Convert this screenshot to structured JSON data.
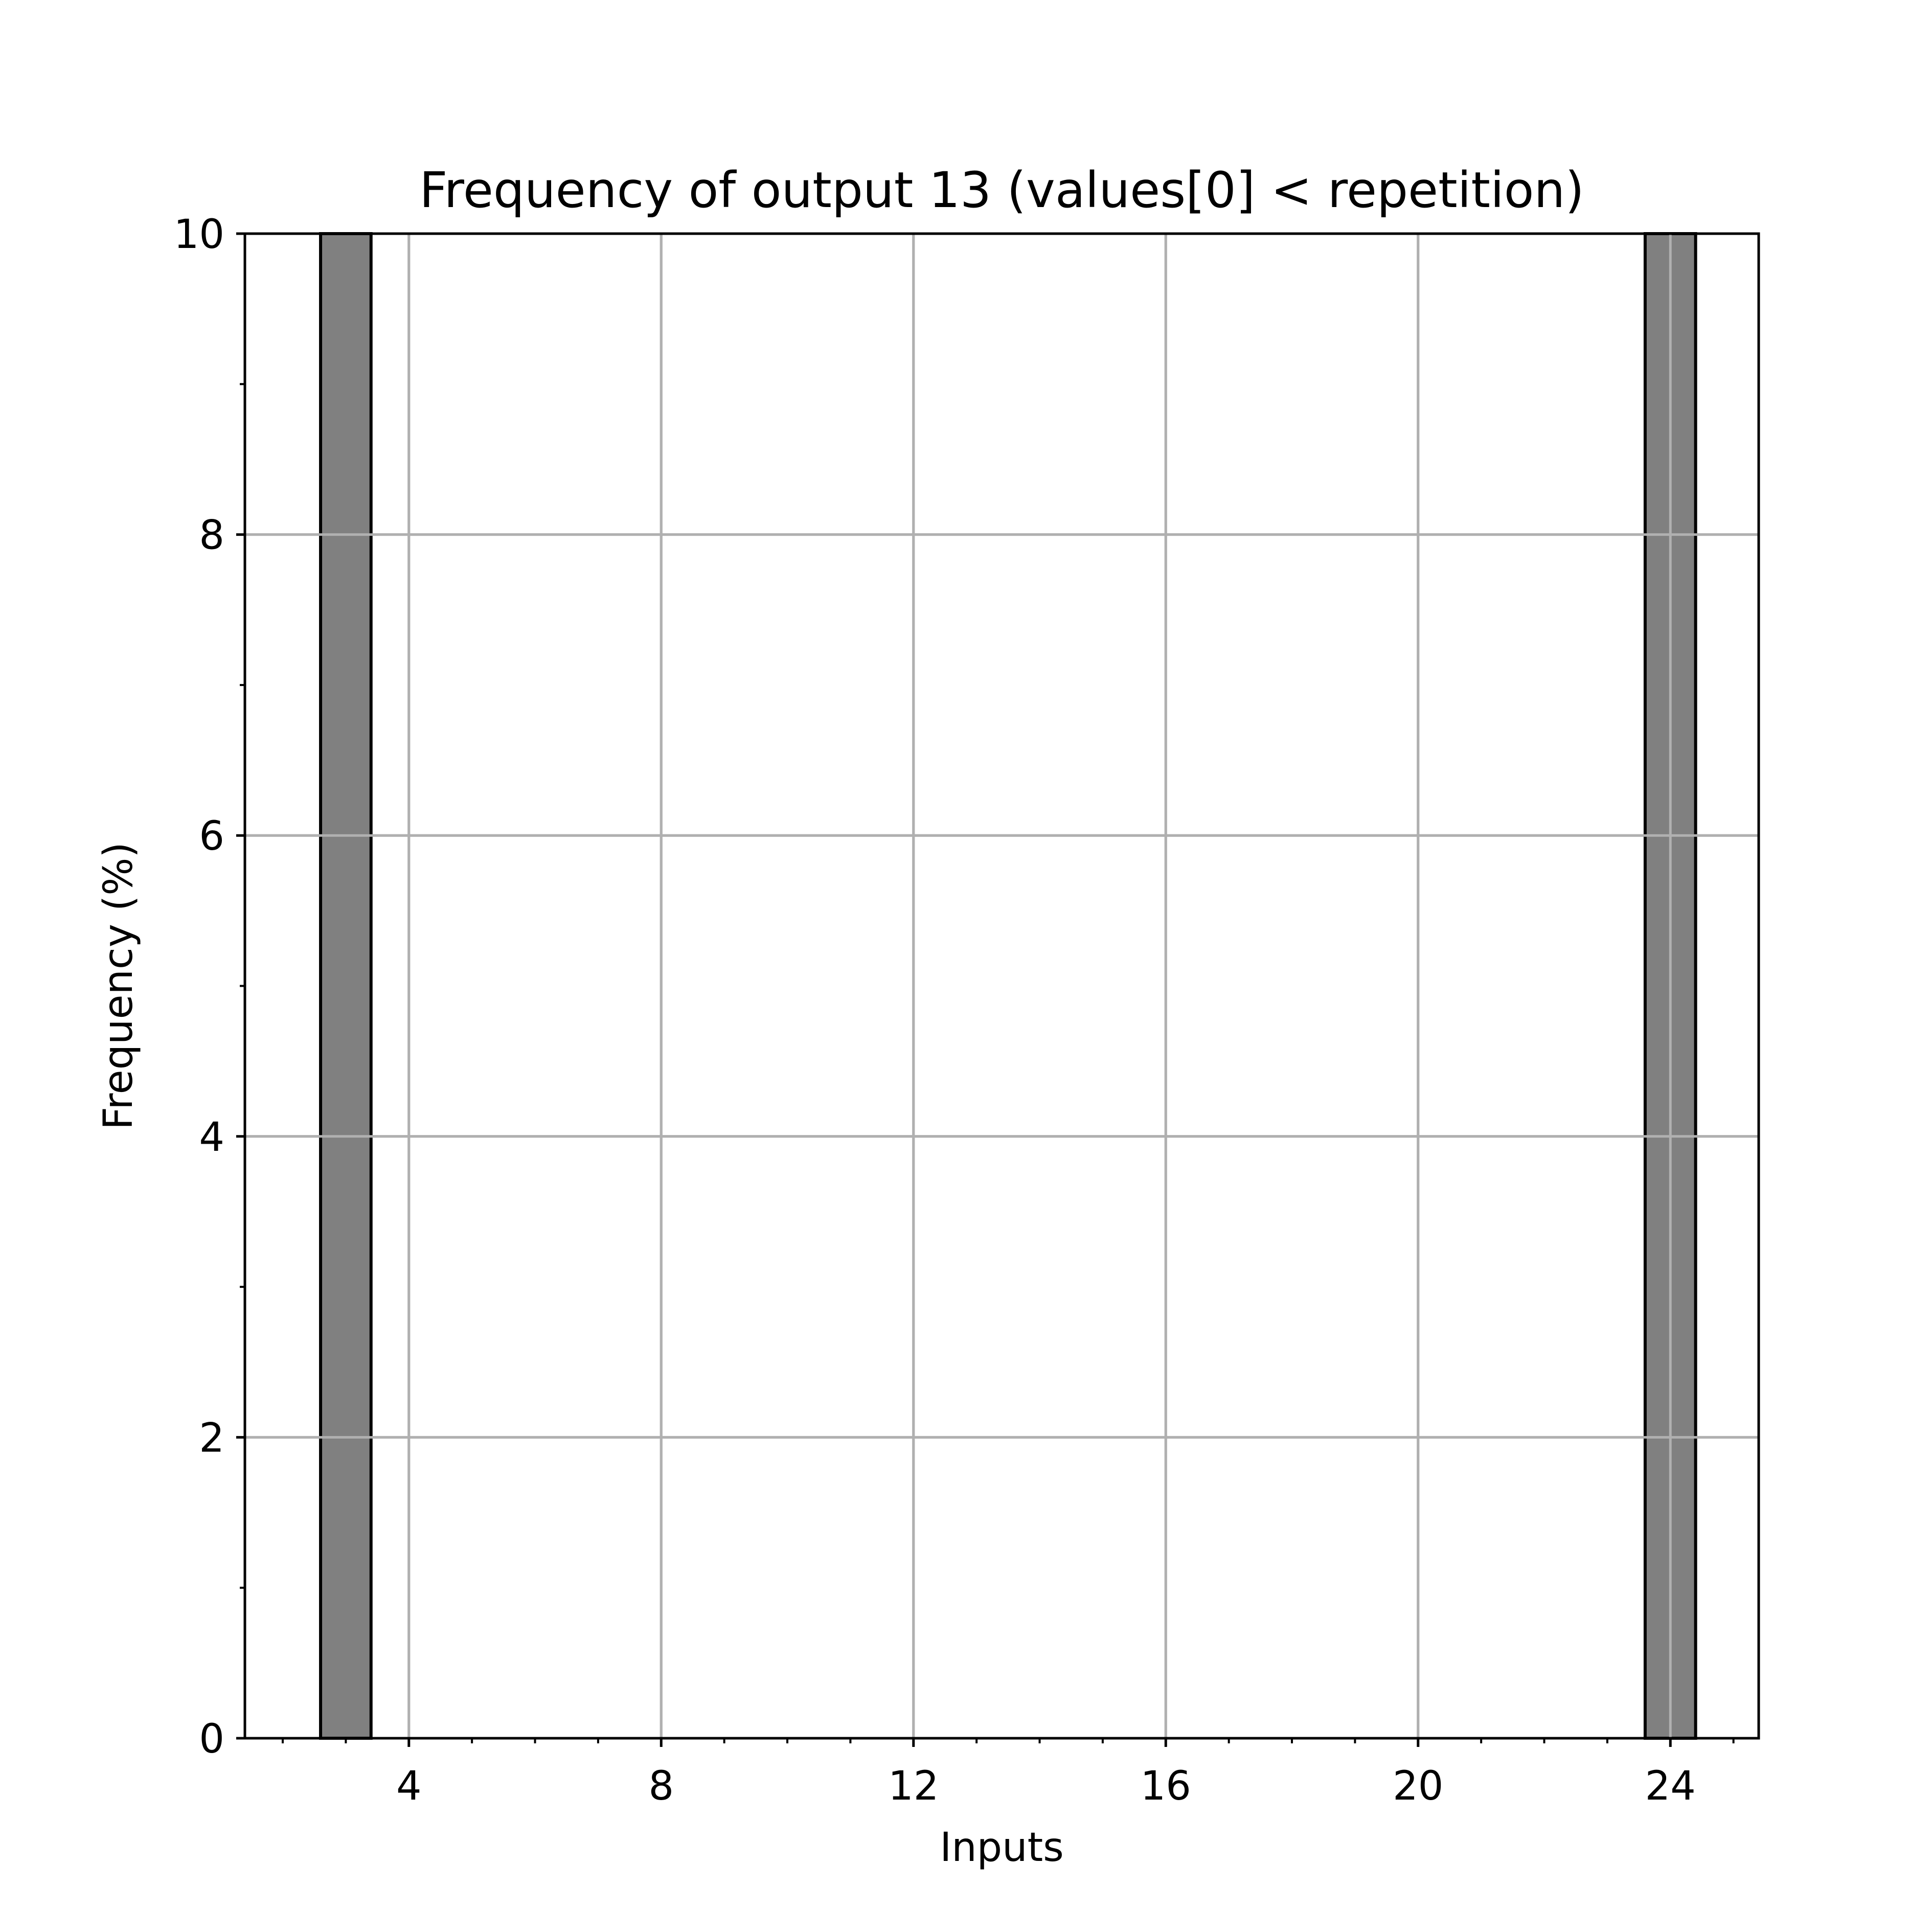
{
  "chart_data": {
    "type": "bar",
    "title": "Frequency of output 13 (values[0] < repetition)",
    "xlabel": "Inputs",
    "ylabel": "Frequency (%)",
    "x": [
      3,
      24
    ],
    "values": [
      10,
      10
    ],
    "bar_width": 0.8,
    "xlim": [
      1.4,
      25.4
    ],
    "ylim": [
      0,
      10
    ],
    "xticks": [
      4,
      8,
      12,
      16,
      20,
      24
    ],
    "xtick_labels": [
      "4",
      "8",
      "12",
      "16",
      "20",
      "24"
    ],
    "x_minor_step": 1,
    "yticks": [
      0,
      2,
      4,
      6,
      8,
      10
    ],
    "ytick_labels": [
      "0",
      "2",
      "4",
      "6",
      "8",
      "10"
    ],
    "y_minor_step": 1,
    "grid": true,
    "bar_color": "#808080",
    "bar_edge_color": "#000000",
    "grid_color": "#b0b0b0"
  }
}
